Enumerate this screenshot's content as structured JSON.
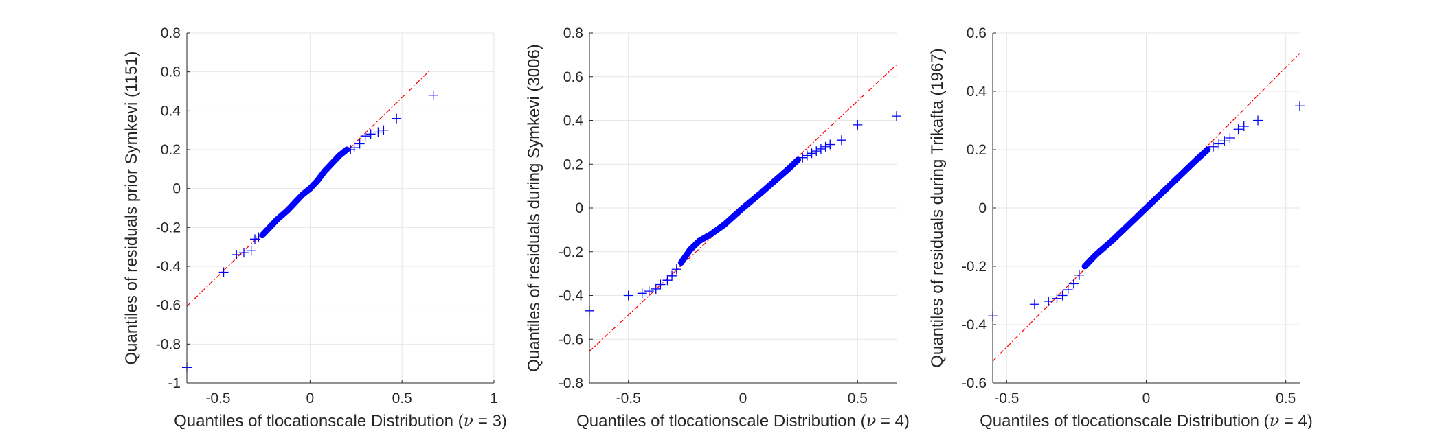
{
  "chart_data": [
    {
      "type": "scatter",
      "title": "",
      "xlabel": "Quantiles of tlocationscale Distribution",
      "nu_symbol": "ν",
      "dof_text": " = 3",
      "ylabel": "Quantiles of residuals prior Symkevi (1151)",
      "xlim": [
        -0.67,
        1.0
      ],
      "ylim": [
        -1.0,
        0.8
      ],
      "xticks": [
        -0.5,
        0,
        0.5,
        1
      ],
      "xtick_labels": [
        "-0.5",
        "0",
        "0.5",
        "1"
      ],
      "yticks": [
        -1,
        -0.8,
        -0.6,
        -0.4,
        -0.2,
        0,
        0.2,
        0.4,
        0.6,
        0.8
      ],
      "ytick_labels": [
        "-1",
        "-0.8",
        "-0.6",
        "-0.4",
        "-0.2",
        "0",
        "0.2",
        "0.4",
        "0.6",
        "0.8"
      ],
      "grid": true,
      "marker_color": "#0000ff",
      "line_color": "#ff0000",
      "reference_line": {
        "x": [
          -0.67,
          0.66
        ],
        "y": [
          -0.605,
          0.615
        ]
      },
      "bulk_path": [
        [
          -0.26,
          -0.24
        ],
        [
          -0.18,
          -0.16
        ],
        [
          -0.12,
          -0.11
        ],
        [
          -0.08,
          -0.07
        ],
        [
          -0.04,
          -0.03
        ],
        [
          0,
          0
        ],
        [
          0.04,
          0.04
        ],
        [
          0.08,
          0.09
        ],
        [
          0.12,
          0.13
        ],
        [
          0.16,
          0.17
        ],
        [
          0.2,
          0.2
        ]
      ],
      "outliers": [
        [
          -0.67,
          -0.92
        ],
        [
          -0.47,
          -0.43
        ],
        [
          -0.4,
          -0.34
        ],
        [
          -0.36,
          -0.33
        ],
        [
          -0.32,
          -0.32
        ],
        [
          -0.3,
          -0.26
        ],
        [
          -0.28,
          -0.25
        ],
        [
          0.22,
          0.2
        ],
        [
          0.24,
          0.21
        ],
        [
          0.27,
          0.23
        ],
        [
          0.3,
          0.27
        ],
        [
          0.33,
          0.28
        ],
        [
          0.37,
          0.29
        ],
        [
          0.4,
          0.3
        ],
        [
          0.47,
          0.36
        ],
        [
          0.67,
          0.48
        ]
      ]
    },
    {
      "type": "scatter",
      "title": "",
      "xlabel": "Quantiles of tlocationscale Distribution",
      "nu_symbol": "ν",
      "dof_text": " = 4",
      "ylabel": "Quantiles of residuals during Symkevi (3006)",
      "xlim": [
        -0.67,
        0.67
      ],
      "ylim": [
        -0.8,
        0.8
      ],
      "xticks": [
        -0.5,
        0,
        0.5
      ],
      "xtick_labels": [
        "-0.5",
        "0",
        "0.5"
      ],
      "yticks": [
        -0.8,
        -0.6,
        -0.4,
        -0.2,
        0,
        0.2,
        0.4,
        0.6,
        0.8
      ],
      "ytick_labels": [
        "-0.8",
        "-0.6",
        "-0.4",
        "-0.2",
        "0",
        "0.2",
        "0.4",
        "0.6",
        "0.8"
      ],
      "grid": true,
      "marker_color": "#0000ff",
      "line_color": "#ff0000",
      "reference_line": {
        "x": [
          -0.67,
          0.67
        ],
        "y": [
          -0.655,
          0.655
        ]
      },
      "bulk_path": [
        [
          -0.27,
          -0.25
        ],
        [
          -0.23,
          -0.19
        ],
        [
          -0.19,
          -0.15
        ],
        [
          -0.14,
          -0.12
        ],
        [
          -0.08,
          -0.075
        ],
        [
          0,
          0
        ],
        [
          0.08,
          0.07
        ],
        [
          0.14,
          0.125
        ],
        [
          0.2,
          0.18
        ],
        [
          0.24,
          0.22
        ]
      ],
      "outliers": [
        [
          -0.67,
          -0.47
        ],
        [
          -0.5,
          -0.4
        ],
        [
          -0.44,
          -0.39
        ],
        [
          -0.41,
          -0.38
        ],
        [
          -0.38,
          -0.37
        ],
        [
          -0.36,
          -0.35
        ],
        [
          -0.33,
          -0.33
        ],
        [
          -0.31,
          -0.31
        ],
        [
          -0.29,
          -0.28
        ],
        [
          0.26,
          0.23
        ],
        [
          0.28,
          0.24
        ],
        [
          0.3,
          0.25
        ],
        [
          0.32,
          0.26
        ],
        [
          0.34,
          0.27
        ],
        [
          0.36,
          0.28
        ],
        [
          0.38,
          0.29
        ],
        [
          0.43,
          0.31
        ],
        [
          0.5,
          0.38
        ],
        [
          0.67,
          0.42
        ]
      ]
    },
    {
      "type": "scatter",
      "title": "",
      "xlabel": "Quantiles of tlocationscale Distribution",
      "nu_symbol": "ν",
      "dof_text": " = 4",
      "ylabel": "Quantiles of residuals during Trikafta (1967)",
      "xlim": [
        -0.55,
        0.55
      ],
      "ylim": [
        -0.6,
        0.6
      ],
      "xticks": [
        -0.5,
        0,
        0.5
      ],
      "xtick_labels": [
        "-0.5",
        "0",
        "0.5"
      ],
      "yticks": [
        -0.6,
        -0.4,
        -0.2,
        0,
        0.2,
        0.4,
        0.6
      ],
      "ytick_labels": [
        "-0.6",
        "-0.4",
        "-0.2",
        "0",
        "0.2",
        "0.4",
        "0.6"
      ],
      "grid": true,
      "marker_color": "#0000ff",
      "line_color": "#ff0000",
      "reference_line": {
        "x": [
          -0.55,
          0.55
        ],
        "y": [
          -0.525,
          0.53
        ]
      },
      "bulk_path": [
        [
          -0.22,
          -0.2
        ],
        [
          -0.18,
          -0.16
        ],
        [
          -0.12,
          -0.11
        ],
        [
          -0.06,
          -0.055
        ],
        [
          0,
          0
        ],
        [
          0.06,
          0.055
        ],
        [
          0.12,
          0.11
        ],
        [
          0.18,
          0.165
        ],
        [
          0.22,
          0.2
        ]
      ],
      "outliers": [
        [
          -0.55,
          -0.37
        ],
        [
          -0.4,
          -0.33
        ],
        [
          -0.35,
          -0.32
        ],
        [
          -0.32,
          -0.31
        ],
        [
          -0.3,
          -0.3
        ],
        [
          -0.28,
          -0.28
        ],
        [
          -0.26,
          -0.26
        ],
        [
          -0.24,
          -0.23
        ],
        [
          0.24,
          0.21
        ],
        [
          0.26,
          0.22
        ],
        [
          0.28,
          0.23
        ],
        [
          0.3,
          0.24
        ],
        [
          0.33,
          0.27
        ],
        [
          0.35,
          0.28
        ],
        [
          0.4,
          0.3
        ],
        [
          0.55,
          0.35
        ]
      ]
    }
  ]
}
